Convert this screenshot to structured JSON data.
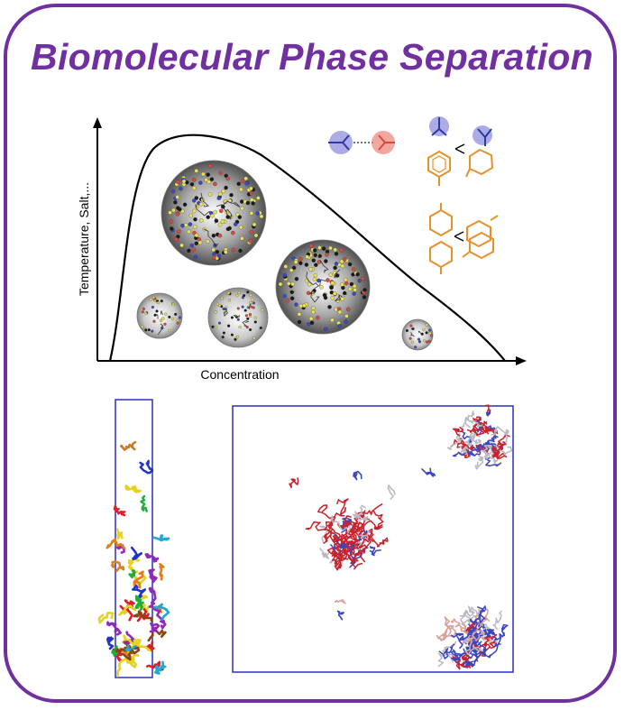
{
  "title": "Biomolecular Phase Separation",
  "diagram": {
    "x_axis_label": "Concentration",
    "y_axis_label": "Temperature, Salt,..."
  },
  "colors": {
    "border": "#7030a0",
    "title": "#7030a0",
    "droplet_dark": "#4a4a4a",
    "blue_molecule": "#2f3b9c",
    "red_molecule": "#d94a3a",
    "aromatic": "#e8912b",
    "simulation_box": "#2b2fbf"
  },
  "icons": {
    "cation_pi": "blue-red-interaction-icon",
    "cation_pi_ring": "cation-pi-interaction-icon",
    "pi_pi": "pi-pi-stacking-icon"
  }
}
